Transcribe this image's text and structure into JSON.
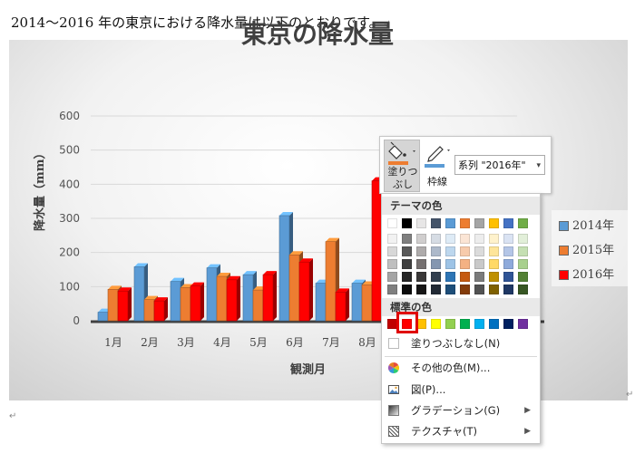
{
  "document": {
    "intro_line": "2014～2016 年の東京における降水量は以下のとおりです。",
    "para_mark": "↵"
  },
  "chart_data": {
    "type": "bar",
    "title": "東京の降水量",
    "xlabel": "観測月",
    "ylabel": "降水量（mm）",
    "ylim": [
      0,
      600
    ],
    "yticks": [
      "0",
      "100",
      "200",
      "300",
      "400",
      "500",
      "600"
    ],
    "grid": true,
    "legend_position": "right",
    "categories": [
      "1月",
      "2月",
      "3月",
      "4月",
      "5月",
      "6月",
      "7月",
      "8月"
    ],
    "series": [
      {
        "name": "2014年",
        "color": "#5b9bd5",
        "values": [
          25,
          158,
          115,
          155,
          135,
          308,
          110,
          110
        ]
      },
      {
        "name": "2015年",
        "color": "#ed7d31",
        "values": [
          92,
          62,
          97,
          130,
          90,
          193,
          232,
          105
        ]
      },
      {
        "name": "2016年",
        "color": "#ff0000",
        "values": [
          87,
          58,
          102,
          120,
          135,
          172,
          84,
          410
        ]
      }
    ]
  },
  "minitoolbar": {
    "fill_label_line1": "塗りつ",
    "fill_label_line2": "ぶし",
    "outline_label": "枠線",
    "series_select_value": "系列 \"2016年\"",
    "fill_color": "#ed7d31",
    "outline_color": "#5b9bd5"
  },
  "color_menu": {
    "theme_colors_header": "テーマの色",
    "standard_colors_header": "標準の色",
    "theme_base": [
      "#ffffff",
      "#000000",
      "#e7e6e6",
      "#44546a",
      "#5b9bd5",
      "#ed7d31",
      "#a5a5a5",
      "#ffc000",
      "#4472c4",
      "#70ad47"
    ],
    "theme_tints": [
      [
        "#f2f2f2",
        "#7f7f7f",
        "#d0cece",
        "#d6dce4",
        "#deebf6",
        "#fbe5d5",
        "#ededed",
        "#fff2cc",
        "#dae3f3",
        "#e2efd9"
      ],
      [
        "#d8d8d8",
        "#595959",
        "#aeabab",
        "#adb9ca",
        "#bdd7ee",
        "#f7cbac",
        "#dbdbdb",
        "#fee599",
        "#b4c6e7",
        "#c5e0b3"
      ],
      [
        "#bfbfbf",
        "#3f3f3f",
        "#757070",
        "#8496b0",
        "#9dc3e6",
        "#f4b183",
        "#c9c9c9",
        "#ffd966",
        "#8eaadb",
        "#a8d08d"
      ],
      [
        "#a5a5a5",
        "#262626",
        "#3a3838",
        "#323f4f",
        "#2e75b5",
        "#c55a11",
        "#7b7b7b",
        "#bf9000",
        "#2f5496",
        "#538135"
      ],
      [
        "#7f7f7f",
        "#0c0c0c",
        "#171616",
        "#222a35",
        "#1e4e79",
        "#843c0b",
        "#525252",
        "#7f6000",
        "#1f3864",
        "#375623"
      ]
    ],
    "standard": [
      "#c00000",
      "#ff0000",
      "#ffc000",
      "#ffff00",
      "#92d050",
      "#00b050",
      "#00b0f0",
      "#0070c0",
      "#002060",
      "#7030a0"
    ],
    "selected_standard_index": 1,
    "no_fill": "塗りつぶしなし(N)",
    "more_colors": "その他の色(M)...",
    "picture": "図(P)...",
    "gradient": "グラデーション(G)",
    "texture": "テクスチャ(T)"
  }
}
